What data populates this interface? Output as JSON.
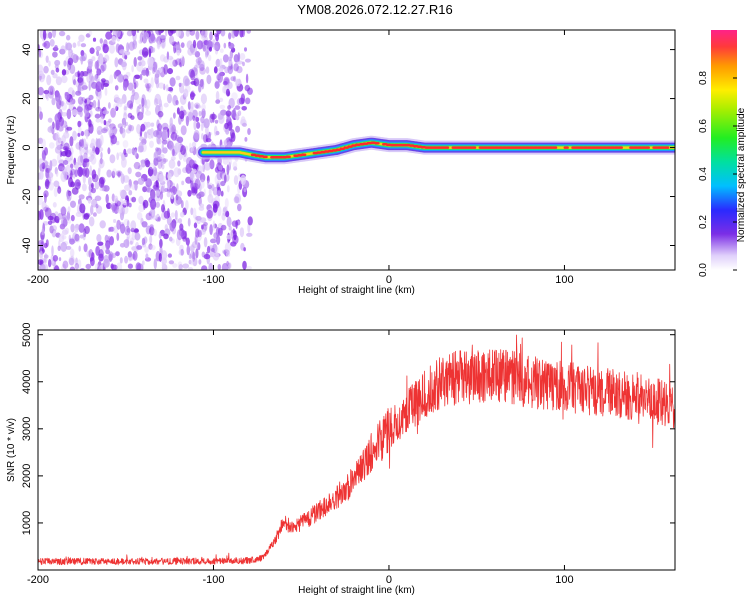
{
  "title": "YM08.2026.072.12.27.R16",
  "chart_data": [
    {
      "type": "heatmap",
      "xlabel": "Height of straight line (km)",
      "ylabel": "Frequency (Hz)",
      "xlim": [
        -200,
        163
      ],
      "ylim": [
        -50,
        48
      ],
      "xticks": [
        -200,
        -100,
        0,
        100
      ],
      "yticks": [
        -40,
        -20,
        0,
        20,
        40
      ],
      "colorbar": {
        "label": "Normalized spectral amplitude",
        "range": [
          0,
          1
        ],
        "ticks": [
          "0.0",
          "0.2",
          "0.4",
          "0.6",
          "0.8"
        ]
      },
      "noise_region_x": [
        -200,
        -79
      ],
      "ridge": {
        "x": [
          -106,
          -95,
          -85,
          -78,
          -70,
          -60,
          -50,
          -40,
          -30,
          -20,
          -10,
          0,
          10,
          20,
          40,
          60,
          80,
          100,
          120,
          140,
          163
        ],
        "freq": [
          -2,
          -2,
          -2,
          -3,
          -4,
          -4,
          -3,
          -2,
          -1,
          1,
          2,
          1,
          1,
          0,
          0,
          0,
          0,
          0,
          0,
          0,
          0
        ]
      }
    },
    {
      "type": "line",
      "xlabel": "Height of straight line (km)",
      "ylabel": "SNR (10 * v/v)",
      "xlim": [
        -200,
        163
      ],
      "ylim": [
        0,
        5100
      ],
      "xticks": [
        -200,
        -100,
        0,
        100
      ],
      "yticks": [
        1000,
        2000,
        3000,
        4000,
        5000
      ],
      "series": [
        {
          "color": "#ee3333",
          "x": [
            -200,
            -150,
            -100,
            -80,
            -72,
            -65,
            -60,
            -55,
            -50,
            -40,
            -30,
            -20,
            -10,
            0,
            10,
            20,
            30,
            40,
            50,
            60,
            70,
            80,
            90,
            100,
            110,
            120,
            130,
            140,
            150,
            163
          ],
          "values": [
            180,
            180,
            190,
            200,
            260,
            600,
            1050,
            880,
            1000,
            1250,
            1550,
            1900,
            2500,
            3000,
            3350,
            3700,
            4000,
            4100,
            4100,
            4150,
            4100,
            4000,
            3950,
            3900,
            3850,
            3800,
            3750,
            3700,
            3600,
            3500
          ]
        }
      ]
    }
  ]
}
